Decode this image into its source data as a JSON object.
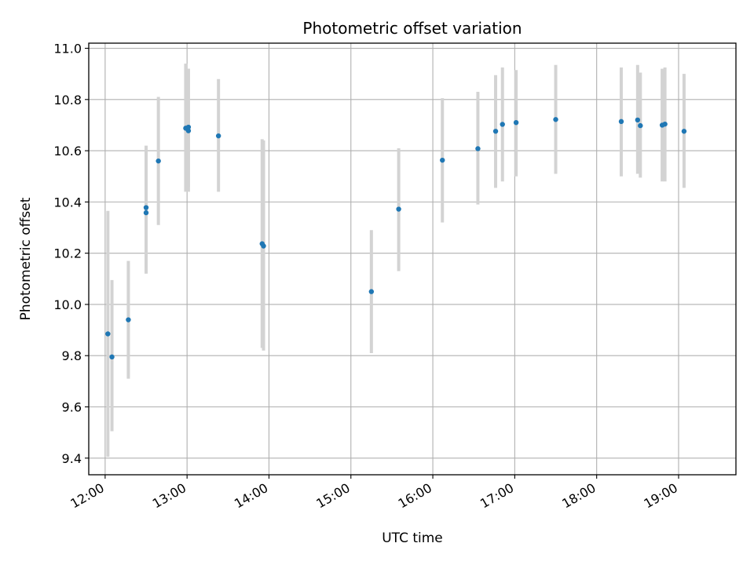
{
  "chart_data": {
    "type": "scatter",
    "title": "Photometric offset variation",
    "xlabel": "UTC time",
    "ylabel": "Photometric offset",
    "x_ticks": [
      "12:00",
      "13:00",
      "14:00",
      "15:00",
      "16:00",
      "17:00",
      "18:00",
      "19:00"
    ],
    "y_ticks": [
      "9.4",
      "9.6",
      "9.8",
      "10.0",
      "10.2",
      "10.4",
      "10.6",
      "10.8",
      "11.0"
    ],
    "xlim": [
      "11:48",
      "19:42"
    ],
    "ylim": [
      9.335,
      11.02
    ],
    "grid": true,
    "colors": {
      "point": "#1f77b4",
      "errorbar": "#d3d3d3",
      "grid": "#b0b0b0",
      "axes": "#000000"
    },
    "points": [
      {
        "x": "12:02",
        "y": 9.885,
        "yerr_low": 9.405,
        "yerr_high": 10.365
      },
      {
        "x": "12:05",
        "y": 9.795,
        "yerr_low": 9.505,
        "yerr_high": 10.095
      },
      {
        "x": "12:17",
        "y": 9.94,
        "yerr_low": 9.71,
        "yerr_high": 10.17
      },
      {
        "x": "12:30",
        "y": 10.378,
        "yerr_low": 10.14,
        "yerr_high": 10.62
      },
      {
        "x": "12:30",
        "y": 10.358,
        "yerr_low": 10.12,
        "yerr_high": 10.6
      },
      {
        "x": "12:39",
        "y": 10.56,
        "yerr_low": 10.31,
        "yerr_high": 10.81
      },
      {
        "x": "12:59",
        "y": 10.688,
        "yerr_low": 10.44,
        "yerr_high": 10.94
      },
      {
        "x": "13:01",
        "y": 10.692,
        "yerr_low": 10.46,
        "yerr_high": 10.92
      },
      {
        "x": "13:01",
        "y": 10.678,
        "yerr_low": 10.44,
        "yerr_high": 10.92
      },
      {
        "x": "13:23",
        "y": 10.658,
        "yerr_low": 10.44,
        "yerr_high": 10.88
      },
      {
        "x": "13:55",
        "y": 10.237,
        "yerr_low": 9.83,
        "yerr_high": 10.645
      },
      {
        "x": "13:56",
        "y": 10.228,
        "yerr_low": 9.82,
        "yerr_high": 10.64
      },
      {
        "x": "15:15",
        "y": 10.05,
        "yerr_low": 9.81,
        "yerr_high": 10.29
      },
      {
        "x": "15:35",
        "y": 10.372,
        "yerr_low": 10.13,
        "yerr_high": 10.61
      },
      {
        "x": "16:07",
        "y": 10.563,
        "yerr_low": 10.32,
        "yerr_high": 10.805
      },
      {
        "x": "16:33",
        "y": 10.608,
        "yerr_low": 10.39,
        "yerr_high": 10.83
      },
      {
        "x": "16:46",
        "y": 10.676,
        "yerr_low": 10.455,
        "yerr_high": 10.895
      },
      {
        "x": "16:51",
        "y": 10.703,
        "yerr_low": 10.48,
        "yerr_high": 10.925
      },
      {
        "x": "17:01",
        "y": 10.71,
        "yerr_low": 10.5,
        "yerr_high": 10.915
      },
      {
        "x": "17:30",
        "y": 10.722,
        "yerr_low": 10.51,
        "yerr_high": 10.935
      },
      {
        "x": "18:18",
        "y": 10.714,
        "yerr_low": 10.5,
        "yerr_high": 10.925
      },
      {
        "x": "18:30",
        "y": 10.72,
        "yerr_low": 10.51,
        "yerr_high": 10.935
      },
      {
        "x": "18:32",
        "y": 10.698,
        "yerr_low": 10.495,
        "yerr_high": 10.905
      },
      {
        "x": "18:48",
        "y": 10.7,
        "yerr_low": 10.48,
        "yerr_high": 10.92
      },
      {
        "x": "18:50",
        "y": 10.704,
        "yerr_low": 10.48,
        "yerr_high": 10.925
      },
      {
        "x": "19:04",
        "y": 10.676,
        "yerr_low": 10.455,
        "yerr_high": 10.9
      }
    ]
  }
}
